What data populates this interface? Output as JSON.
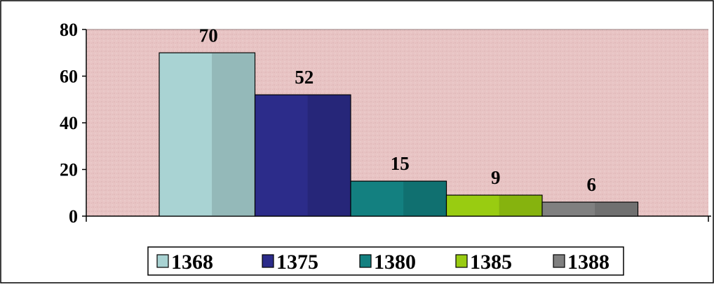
{
  "chart_data": {
    "type": "bar",
    "categories": [
      "1368",
      "1375",
      "1380",
      "1385",
      "1388"
    ],
    "values": [
      70,
      52,
      15,
      9,
      6
    ],
    "data_labels": [
      "70",
      "52",
      "15",
      "9",
      "6"
    ],
    "ylim": [
      0,
      80
    ],
    "yticks": [
      0,
      20,
      40,
      60,
      80
    ],
    "ytick_labels": [
      "0",
      "20",
      "40",
      "60",
      "80"
    ],
    "grid": false,
    "legend": {
      "placement": "bottom",
      "entries": [
        "1368",
        "1375",
        "1380",
        "1385",
        "1388"
      ]
    },
    "colors": {
      "plot_background": "#e8c4c4",
      "bars": [
        "#a9d3d3",
        "#2c2c8a",
        "#138080",
        "#99cc11",
        "#808080"
      ]
    }
  }
}
